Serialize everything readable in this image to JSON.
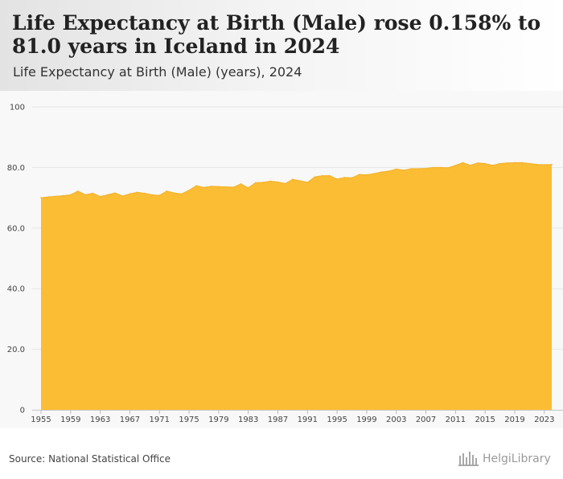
{
  "header": {
    "title": "Life Expectancy at Birth (Male) rose 0.158% to 81.0 years in Iceland in 2024",
    "subtitle": "Life Expectancy at Birth (Male) (years), 2024"
  },
  "footer": {
    "source": "Source: National Statistical Office",
    "logo_text": "HelgiLibrary"
  },
  "colors": {
    "area_fill": "#fbbd34",
    "area_stroke": "#f3b12a",
    "grid": "#e6e6e6",
    "tick_text": "#444444"
  },
  "chart_data": {
    "type": "area",
    "x": [
      1955,
      1956,
      1957,
      1958,
      1959,
      1960,
      1961,
      1962,
      1963,
      1964,
      1965,
      1966,
      1967,
      1968,
      1969,
      1970,
      1971,
      1972,
      1973,
      1974,
      1975,
      1976,
      1977,
      1978,
      1979,
      1980,
      1981,
      1982,
      1983,
      1984,
      1985,
      1986,
      1987,
      1988,
      1989,
      1990,
      1991,
      1992,
      1993,
      1994,
      1995,
      1996,
      1997,
      1998,
      1999,
      2000,
      2001,
      2002,
      2003,
      2004,
      2005,
      2006,
      2007,
      2008,
      2009,
      2010,
      2011,
      2012,
      2013,
      2014,
      2015,
      2016,
      2017,
      2018,
      2019,
      2020,
      2021,
      2022,
      2023,
      2024
    ],
    "values": [
      70.0,
      70.3,
      70.5,
      70.7,
      71.0,
      72.2,
      71.0,
      71.5,
      70.4,
      71.0,
      71.6,
      70.6,
      71.3,
      71.8,
      71.5,
      71.0,
      70.8,
      72.2,
      71.6,
      71.3,
      72.5,
      74.0,
      73.4,
      73.8,
      73.7,
      73.6,
      73.5,
      74.6,
      73.3,
      75.0,
      75.1,
      75.5,
      75.2,
      74.7,
      76.1,
      75.6,
      75.1,
      76.9,
      77.3,
      77.3,
      76.2,
      76.7,
      76.6,
      77.7,
      77.6,
      78.0,
      78.5,
      78.8,
      79.5,
      79.1,
      79.6,
      79.6,
      79.7,
      80.0,
      80.0,
      79.9,
      80.7,
      81.6,
      80.7,
      81.5,
      81.3,
      80.7,
      81.3,
      81.5,
      81.6,
      81.6,
      81.3,
      81.0,
      80.9,
      81.0
    ],
    "xlabel": "",
    "ylabel": "",
    "ylim": [
      0,
      100
    ],
    "yticks": [
      "0",
      "20.0",
      "40.0",
      "60.0",
      "80.0",
      "100"
    ],
    "ytick_values": [
      0,
      20,
      40,
      60,
      80,
      100
    ],
    "xticks": [
      "1955",
      "1959",
      "1963",
      "1967",
      "1971",
      "1975",
      "1979",
      "1983",
      "1987",
      "1991",
      "1995",
      "1999",
      "2003",
      "2007",
      "2011",
      "2015",
      "2019",
      "2023"
    ],
    "xtick_values": [
      1955,
      1959,
      1963,
      1967,
      1971,
      1975,
      1979,
      1983,
      1987,
      1991,
      1995,
      1999,
      2003,
      2007,
      2011,
      2015,
      2019,
      2023
    ],
    "grid": true,
    "legend": "none"
  }
}
